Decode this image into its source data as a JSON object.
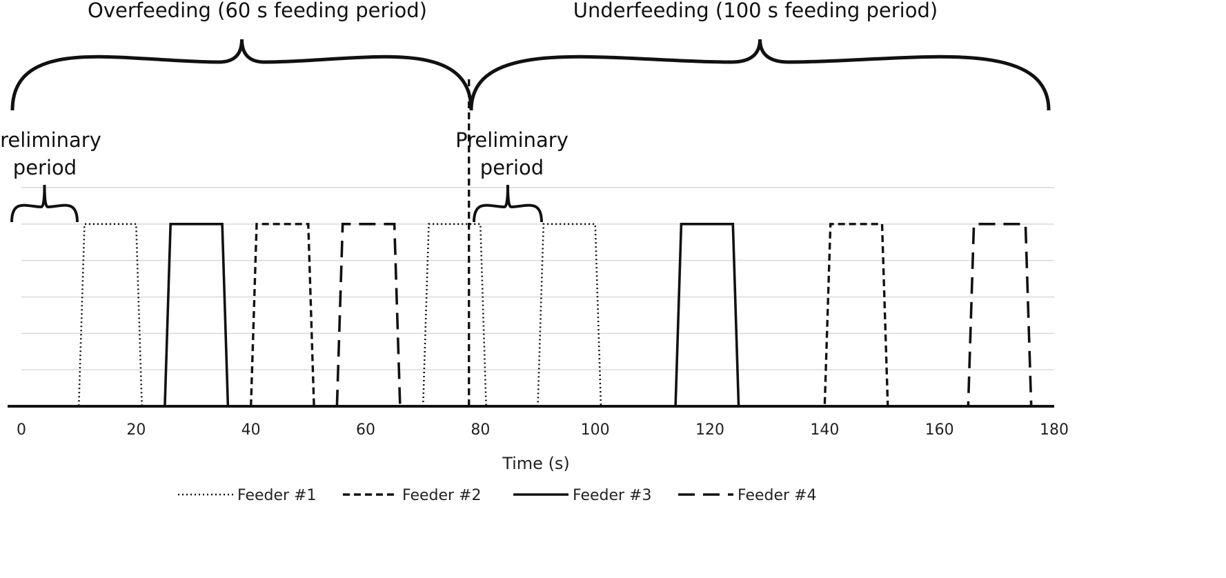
{
  "chart_data": {
    "type": "line",
    "xlabel": "Time (s)",
    "xlim": [
      0,
      180
    ],
    "xticks": [
      0,
      20,
      40,
      60,
      80,
      100,
      120,
      140,
      160,
      180
    ],
    "ylim": [
      0,
      1.2
    ],
    "y_gridlines": [
      0.2,
      0.4,
      0.6,
      0.8,
      1.0,
      1.2
    ],
    "grid": true,
    "legend_placement": "bottom",
    "series": [
      {
        "name": "Feeder #1",
        "style": "dotted",
        "segments": [
          [
            [
              0,
              0
            ],
            [
              10,
              0
            ],
            [
              11,
              1
            ],
            [
              20,
              1
            ],
            [
              21,
              0
            ],
            [
              40,
              0
            ]
          ],
          [
            [
              70,
              0
            ],
            [
              71,
              1
            ],
            [
              80,
              1
            ],
            [
              81,
              0
            ],
            [
              90,
              0
            ],
            [
              91,
              1
            ],
            [
              100,
              1
            ],
            [
              101,
              0
            ]
          ]
        ]
      },
      {
        "name": "Feeder #2",
        "style": "short-dash",
        "segments": [
          [
            [
              40,
              0
            ],
            [
              41,
              1
            ],
            [
              50,
              1
            ],
            [
              51,
              0
            ],
            [
              55,
              0
            ]
          ],
          [
            [
              78,
              0
            ],
            [
              78,
              1.8
            ]
          ],
          [
            [
              125,
              0
            ],
            [
              140,
              0
            ],
            [
              141,
              1
            ],
            [
              150,
              1
            ],
            [
              151,
              0
            ],
            [
              165,
              0
            ]
          ]
        ]
      },
      {
        "name": "Feeder #3",
        "style": "solid",
        "segments": [
          [
            [
              0,
              0
            ],
            [
              25,
              0
            ],
            [
              26,
              1
            ],
            [
              35,
              1
            ],
            [
              36,
              0
            ],
            [
              40,
              0
            ]
          ],
          [
            [
              100,
              0
            ],
            [
              114,
              0
            ],
            [
              115,
              1
            ],
            [
              124,
              1
            ],
            [
              125,
              0
            ],
            [
              130,
              0
            ]
          ]
        ]
      },
      {
        "name": "Feeder #4",
        "style": "long-dash",
        "segments": [
          [
            [
              55,
              0
            ],
            [
              56,
              1
            ],
            [
              65,
              1
            ],
            [
              66,
              0
            ],
            [
              70,
              0
            ]
          ],
          [
            [
              150,
              0
            ],
            [
              165,
              0
            ],
            [
              166,
              1
            ],
            [
              175,
              1
            ],
            [
              176,
              0
            ],
            [
              180,
              0
            ]
          ]
        ]
      }
    ],
    "annotations": {
      "top_left_text": "Overfeeding (60 s feeding period)",
      "top_right_text": "Underfeeding (100 s feeding period)",
      "preliminary_left_line1": "Preliminary",
      "preliminary_left_line2": "period",
      "preliminary_right_line1": "Preliminary",
      "preliminary_right_line2": "period"
    }
  }
}
